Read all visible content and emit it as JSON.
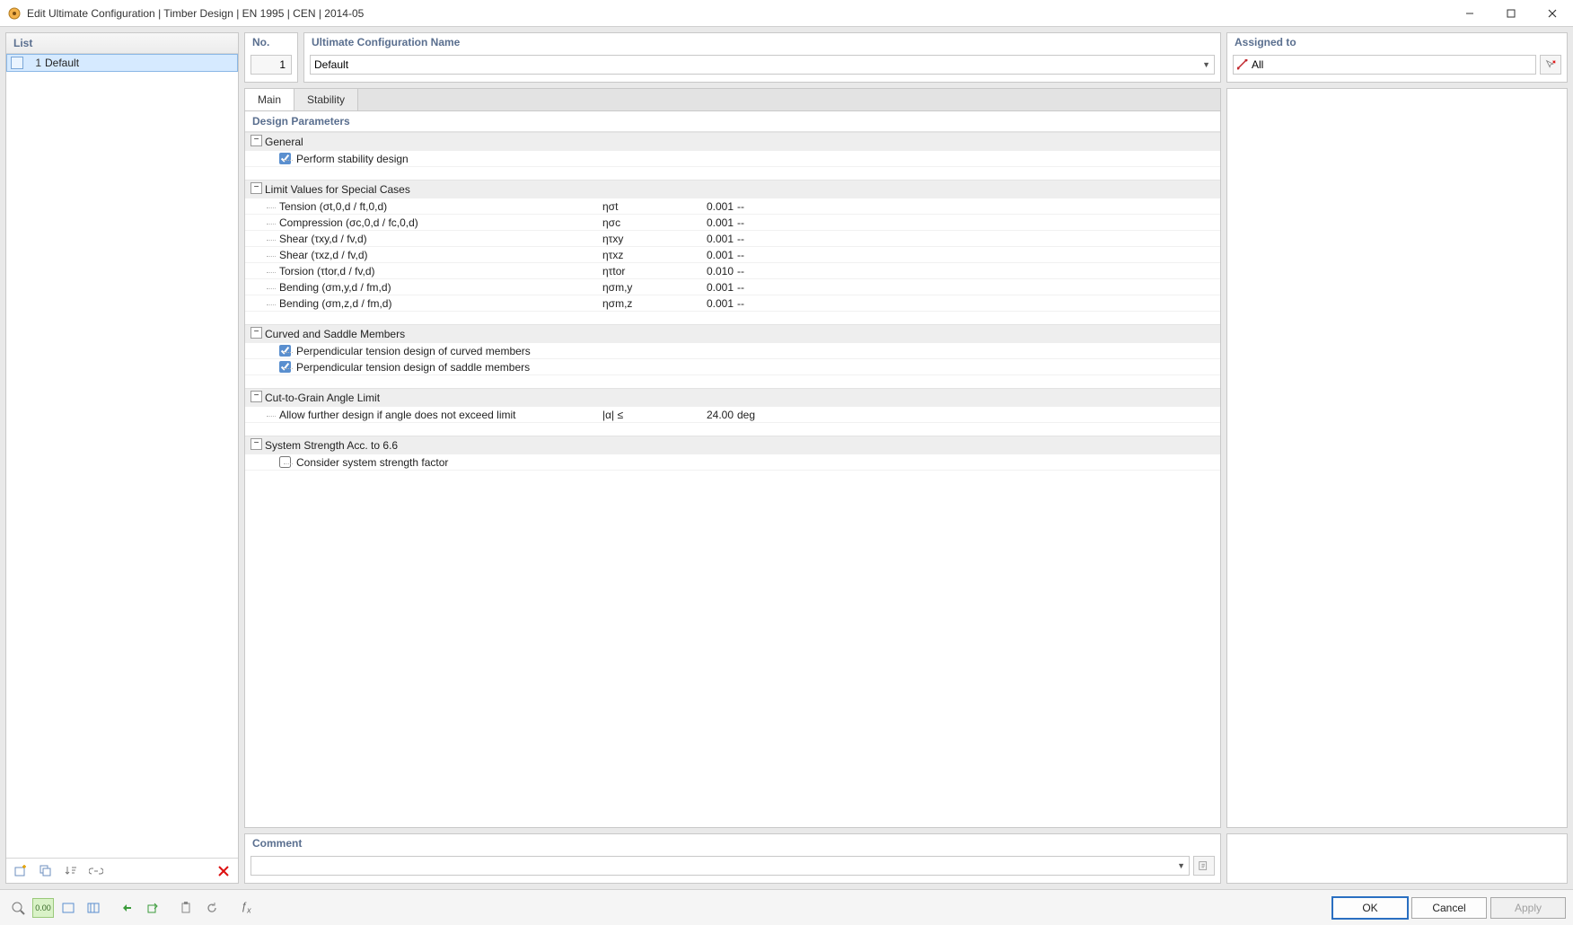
{
  "window": {
    "title": "Edit Ultimate Configuration | Timber Design | EN 1995 | CEN | 2014-05"
  },
  "list": {
    "header": "List",
    "items": [
      {
        "num": "1",
        "name": "Default"
      }
    ]
  },
  "topstrip": {
    "no_label": "No.",
    "no_value": "1",
    "name_label": "Ultimate Configuration Name",
    "name_value": "Default",
    "assigned_label": "Assigned to",
    "assigned_value": "All"
  },
  "tabs": {
    "main": "Main",
    "stability": "Stability"
  },
  "params": {
    "title": "Design Parameters",
    "groups": {
      "general": {
        "title": "General",
        "stability_cb": "Perform stability design"
      },
      "limits": {
        "title": "Limit Values for Special Cases",
        "rows": [
          {
            "label": "Tension (σt,0,d / ft,0,d)",
            "sym": "ησt",
            "val": "0.001",
            "unit": "--"
          },
          {
            "label": "Compression (σc,0,d / fc,0,d)",
            "sym": "ησc",
            "val": "0.001",
            "unit": "--"
          },
          {
            "label": "Shear (τxy,d / fv,d)",
            "sym": "ητxy",
            "val": "0.001",
            "unit": "--"
          },
          {
            "label": "Shear (τxz,d / fv,d)",
            "sym": "ητxz",
            "val": "0.001",
            "unit": "--"
          },
          {
            "label": "Torsion (τtor,d / fv,d)",
            "sym": "ητtor",
            "val": "0.010",
            "unit": "--"
          },
          {
            "label": "Bending (σm,y,d / fm,d)",
            "sym": "ησm,y",
            "val": "0.001",
            "unit": "--"
          },
          {
            "label": "Bending (σm,z,d / fm,d)",
            "sym": "ησm,z",
            "val": "0.001",
            "unit": "--"
          }
        ]
      },
      "curved": {
        "title": "Curved and Saddle Members",
        "cb1": "Perpendicular tension design of curved members",
        "cb2": "Perpendicular tension design of saddle members"
      },
      "angle": {
        "title": "Cut-to-Grain Angle Limit",
        "row": {
          "label": "Allow further design if angle does not exceed limit",
          "sym": "|α| ≤",
          "val": "24.00",
          "unit": "deg"
        }
      },
      "system": {
        "title": "System Strength Acc. to 6.6",
        "cb": "Consider system strength factor"
      }
    }
  },
  "comment": {
    "label": "Comment"
  },
  "buttons": {
    "ok": "OK",
    "cancel": "Cancel",
    "apply": "Apply"
  }
}
